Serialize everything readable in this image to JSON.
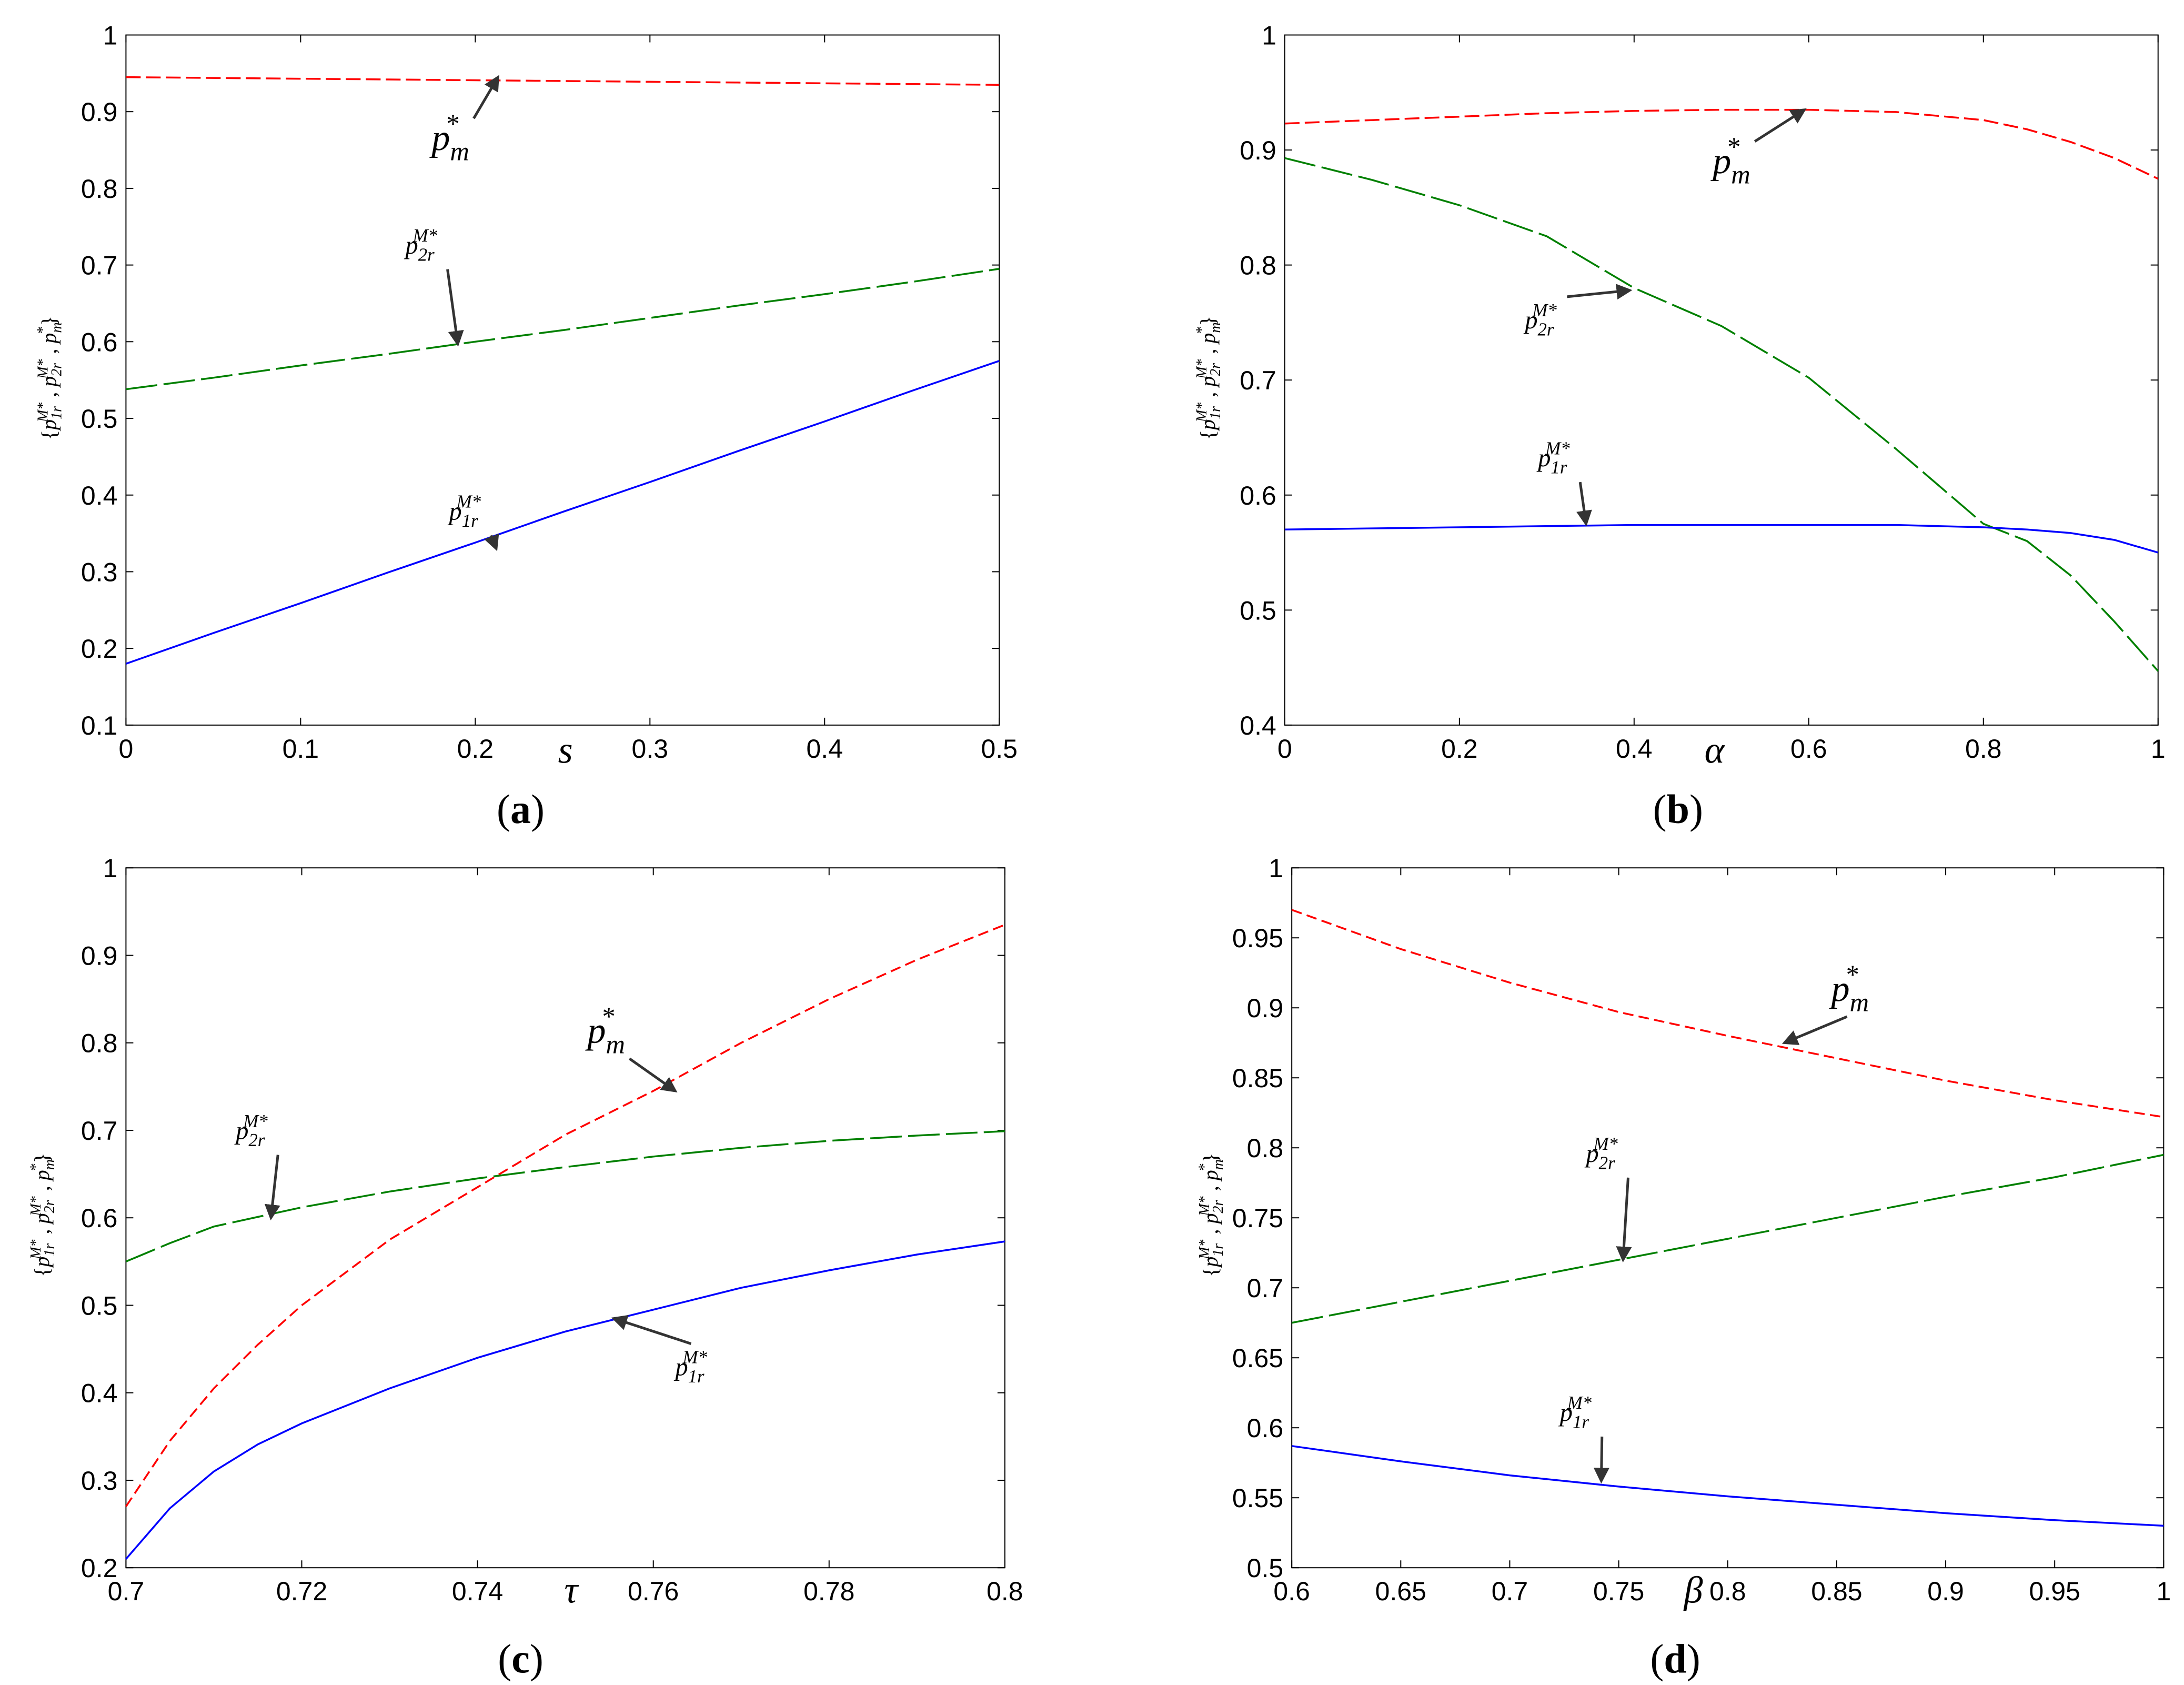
{
  "chart_data": [
    {
      "type": "line",
      "panel": "(a)",
      "panel_letter": "a",
      "xlabel": "s",
      "ylabel_parts": {
        "p": "p",
        "sub1": "1r",
        "sub2": "2r",
        "subm": "m",
        "sup": "M*",
        "star": "*"
      },
      "xlim": [
        0,
        0.5
      ],
      "ylim": [
        0.1,
        1
      ],
      "xticks": [
        "0",
        "0.1",
        "0.2",
        "0.3",
        "0.4",
        "0.5"
      ],
      "yticks": [
        "0.1",
        "0.2",
        "0.3",
        "0.4",
        "0.5",
        "0.6",
        "0.7",
        "0.8",
        "0.9",
        "1"
      ],
      "x": [
        0,
        0.05,
        0.1,
        0.15,
        0.2,
        0.25,
        0.3,
        0.35,
        0.4,
        0.45,
        0.5
      ],
      "series": [
        {
          "name": "p_m*",
          "color": "#ff0000",
          "dash": "28 10",
          "values": [
            0.945,
            0.944,
            0.943,
            0.942,
            0.941,
            0.94,
            0.939,
            0.938,
            0.937,
            0.936,
            0.935
          ]
        },
        {
          "name": "p_2r^M*",
          "color": "#008000",
          "dash": "60 12",
          "values": [
            0.538,
            0.553,
            0.569,
            0.584,
            0.6,
            0.615,
            0.631,
            0.647,
            0.662,
            0.678,
            0.695
          ]
        },
        {
          "name": "p_1r^M*",
          "color": "#0000ff",
          "dash": "",
          "values": [
            0.18,
            0.22,
            0.259,
            0.299,
            0.338,
            0.378,
            0.417,
            0.457,
            0.496,
            0.536,
            0.575
          ]
        }
      ],
      "annotations": [
        {
          "series": "p_m*",
          "text_pos": [
            0.175,
            0.85
          ],
          "tip": [
            0.213,
            0.945
          ],
          "fs": 58
        },
        {
          "series": "p_2r^M*",
          "text_pos": [
            0.16,
            0.715
          ],
          "tip": [
            0.19,
            0.597
          ],
          "fs": 40
        },
        {
          "series": "p_1r^M*",
          "text_pos": [
            0.185,
            0.368
          ],
          "tip": [
            0.212,
            0.33
          ],
          "fs": 40
        }
      ]
    },
    {
      "type": "line",
      "panel": "(b)",
      "panel_letter": "b",
      "xlabel": "α",
      "ylabel_parts": {
        "p": "p",
        "sub1": "1r",
        "sub2": "2r",
        "subm": "m",
        "sup": "M*",
        "star": "*"
      },
      "xlim": [
        0,
        1
      ],
      "ylim": [
        0.4,
        1
      ],
      "xticks": [
        "0",
        "0.2",
        "0.4",
        "0.6",
        "0.8",
        "1"
      ],
      "yticks": [
        "0.4",
        "0.5",
        "0.6",
        "0.7",
        "0.8",
        "0.9",
        "1"
      ],
      "x": [
        0,
        0.1,
        0.2,
        0.3,
        0.4,
        0.5,
        0.6,
        0.7,
        0.8,
        0.85,
        0.9,
        0.95,
        1
      ],
      "series": [
        {
          "name": "p_m*",
          "color": "#ff0000",
          "dash": "28 10",
          "values": [
            0.923,
            0.926,
            0.929,
            0.932,
            0.934,
            0.935,
            0.935,
            0.933,
            0.926,
            0.918,
            0.907,
            0.893,
            0.875
          ]
        },
        {
          "name": "p_2r^M*",
          "color": "#008000",
          "dash": "60 12",
          "values": [
            0.893,
            0.874,
            0.852,
            0.825,
            0.78,
            0.747,
            0.702,
            0.64,
            0.575,
            0.56,
            0.53,
            0.49,
            0.447
          ]
        },
        {
          "name": "p_1r^M*",
          "color": "#0000ff",
          "dash": "",
          "values": [
            0.57,
            0.571,
            0.572,
            0.573,
            0.574,
            0.574,
            0.574,
            0.574,
            0.572,
            0.57,
            0.567,
            0.561,
            0.55
          ]
        }
      ],
      "annotations": [
        {
          "series": "p_m*",
          "text_pos": [
            0.49,
            0.88
          ],
          "tip": [
            0.595,
            0.935
          ],
          "fs": 58
        },
        {
          "series": "p_2r^M*",
          "text_pos": [
            0.275,
            0.745
          ],
          "tip": [
            0.395,
            0.778
          ],
          "fs": 40
        },
        {
          "series": "p_1r^M*",
          "text_pos": [
            0.29,
            0.625
          ],
          "tip": [
            0.345,
            0.575
          ],
          "fs": 40
        }
      ]
    },
    {
      "type": "line",
      "panel": "(c)",
      "panel_letter": "c",
      "xlabel": "τ",
      "ylabel_parts": {
        "p": "p",
        "sub1": "1r",
        "sub2": "2r",
        "subm": "m",
        "sup": "M*",
        "star": "*"
      },
      "xlim": [
        0.7,
        0.8
      ],
      "ylim": [
        0.2,
        1
      ],
      "xticks": [
        "0.7",
        "0.72",
        "0.74",
        "0.76",
        "0.78",
        "0.8"
      ],
      "yticks": [
        "0.2",
        "0.3",
        "0.4",
        "0.5",
        "0.6",
        "0.7",
        "0.8",
        "0.9",
        "1"
      ],
      "x": [
        0.7,
        0.705,
        0.71,
        0.715,
        0.72,
        0.73,
        0.74,
        0.75,
        0.76,
        0.77,
        0.78,
        0.79,
        0.8
      ],
      "series": [
        {
          "name": "p_m*",
          "color": "#ff0000",
          "dash": "20 10",
          "values": [
            0.27,
            0.345,
            0.405,
            0.455,
            0.5,
            0.575,
            0.635,
            0.695,
            0.745,
            0.8,
            0.85,
            0.895,
            0.935
          ]
        },
        {
          "name": "p_2r^M*",
          "color": "#008000",
          "dash": "60 12",
          "values": [
            0.55,
            0.571,
            0.59,
            0.601,
            0.612,
            0.63,
            0.645,
            0.658,
            0.67,
            0.68,
            0.688,
            0.694,
            0.699
          ]
        },
        {
          "name": "p_1r^M*",
          "color": "#0000ff",
          "dash": "",
          "values": [
            0.21,
            0.268,
            0.31,
            0.341,
            0.365,
            0.405,
            0.44,
            0.47,
            0.495,
            0.52,
            0.54,
            0.558,
            0.573
          ]
        }
      ],
      "annotations": [
        {
          "series": "p_m*",
          "text_pos": [
            0.7525,
            0.8
          ],
          "tip": [
            0.7625,
            0.745
          ],
          "fs": 58
        },
        {
          "series": "p_2r^M*",
          "text_pos": [
            0.7125,
            0.69
          ],
          "tip": [
            0.7165,
            0.6
          ],
          "fs": 40
        },
        {
          "series": "p_1r^M*",
          "text_pos": [
            0.7625,
            0.42
          ],
          "tip": [
            0.7555,
            0.485
          ],
          "fs": 40
        }
      ]
    },
    {
      "type": "line",
      "panel": "(d)",
      "panel_letter": "d",
      "xlabel": "β",
      "ylabel_parts": {
        "p": "p",
        "sub1": "1r",
        "sub2": "2r",
        "subm": "m",
        "sup": "M*",
        "star": "*"
      },
      "xlim": [
        0.6,
        1
      ],
      "ylim": [
        0.5,
        1
      ],
      "xticks": [
        "0.6",
        "0.65",
        "0.7",
        "0.75",
        "0.8",
        "0.85",
        "0.9",
        "0.95",
        "1"
      ],
      "yticks": [
        "0.5",
        "0.55",
        "0.6",
        "0.65",
        "0.7",
        "0.75",
        "0.8",
        "0.85",
        "0.9",
        "0.95",
        "1"
      ],
      "x": [
        0.6,
        0.65,
        0.7,
        0.75,
        0.8,
        0.85,
        0.9,
        0.95,
        1
      ],
      "series": [
        {
          "name": "p_m*",
          "color": "#ff0000",
          "dash": "20 10",
          "values": [
            0.97,
            0.942,
            0.918,
            0.897,
            0.88,
            0.864,
            0.848,
            0.834,
            0.822
          ]
        },
        {
          "name": "p_2r^M*",
          "color": "#008000",
          "dash": "60 12",
          "values": [
            0.675,
            0.69,
            0.705,
            0.72,
            0.735,
            0.75,
            0.765,
            0.779,
            0.795
          ]
        },
        {
          "name": "p_1r^M*",
          "color": "#0000ff",
          "dash": "",
          "values": [
            0.587,
            0.576,
            0.566,
            0.558,
            0.551,
            0.545,
            0.539,
            0.534,
            0.53
          ]
        }
      ],
      "annotations": [
        {
          "series": "p_m*",
          "text_pos": [
            0.8475,
            0.905
          ],
          "tip": [
            0.826,
            0.875
          ],
          "fs": 58
        },
        {
          "series": "p_2r^M*",
          "text_pos": [
            0.735,
            0.79
          ],
          "tip": [
            0.752,
            0.72
          ],
          "fs": 40
        },
        {
          "series": "p_1r^M*",
          "text_pos": [
            0.723,
            0.605
          ],
          "tip": [
            0.742,
            0.562
          ],
          "fs": 40
        }
      ]
    }
  ]
}
